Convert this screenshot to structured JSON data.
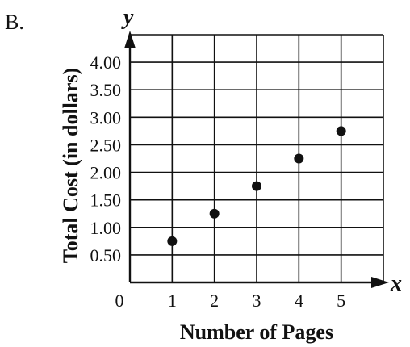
{
  "option_label": "B.",
  "chart_data": {
    "type": "scatter",
    "xlabel": "Number of Pages",
    "ylabel": "Total Cost (in dollars)",
    "x_axis_symbol": "x",
    "y_axis_symbol": "y",
    "origin_label": "0",
    "x_ticks": [
      "1",
      "2",
      "3",
      "4",
      "5"
    ],
    "y_ticks": [
      "0.50",
      "1.00",
      "1.50",
      "2.00",
      "2.50",
      "3.00",
      "3.50",
      "4.00"
    ],
    "xlim": [
      0,
      6
    ],
    "ylim": [
      0,
      4.5
    ],
    "grid": true,
    "points": [
      {
        "x": 1,
        "y": 0.75
      },
      {
        "x": 2,
        "y": 1.25
      },
      {
        "x": 3,
        "y": 1.75
      },
      {
        "x": 4,
        "y": 2.25
      },
      {
        "x": 5,
        "y": 2.75
      }
    ]
  }
}
